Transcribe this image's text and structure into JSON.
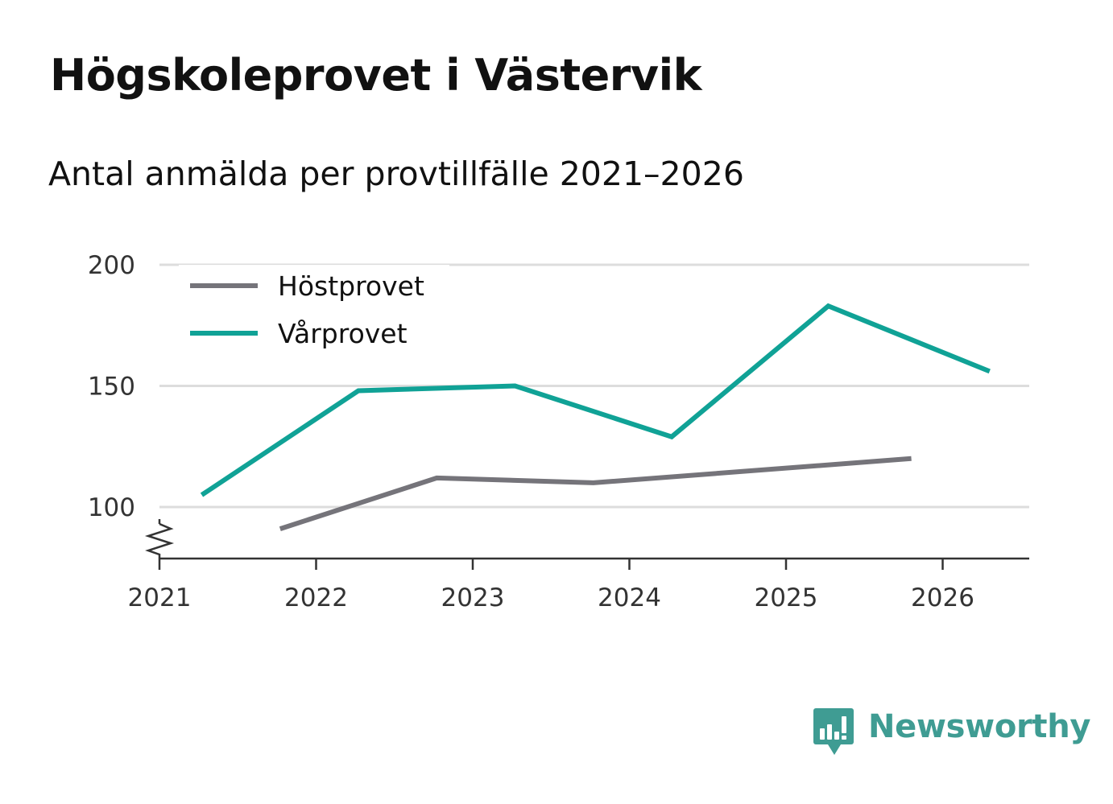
{
  "chart_data": {
    "type": "line",
    "title": "Högskoleprovet i Västervik",
    "subtitle": "Antal anmälda per provtillfälle 2021–2026",
    "x_ticks": [
      "2021",
      "2022",
      "2023",
      "2024",
      "2025",
      "2026"
    ],
    "y_ticks": [
      100,
      150,
      200
    ],
    "xlim": [
      2021,
      2026.55
    ],
    "ylim": [
      78,
      200
    ],
    "axis_break": true,
    "grid": true,
    "legend_position": "top-left",
    "series": [
      {
        "name": "Höstprovet",
        "color": "#75747a",
        "points": [
          {
            "x": 2021.77,
            "y": 91
          },
          {
            "x": 2022.77,
            "y": 112
          },
          {
            "x": 2023.77,
            "y": 110
          },
          {
            "x": 2025.8,
            "y": 120
          }
        ]
      },
      {
        "name": "Vårprovet",
        "color": "#10a296",
        "points": [
          {
            "x": 2021.27,
            "y": 105
          },
          {
            "x": 2022.27,
            "y": 148
          },
          {
            "x": 2023.27,
            "y": 150
          },
          {
            "x": 2024.27,
            "y": 129
          },
          {
            "x": 2025.27,
            "y": 183
          },
          {
            "x": 2026.3,
            "y": 156
          }
        ]
      }
    ]
  },
  "branding": {
    "name": "Newsworthy",
    "logo_icon": "newsworthy-logo-icon",
    "color": "#3f9c93"
  }
}
